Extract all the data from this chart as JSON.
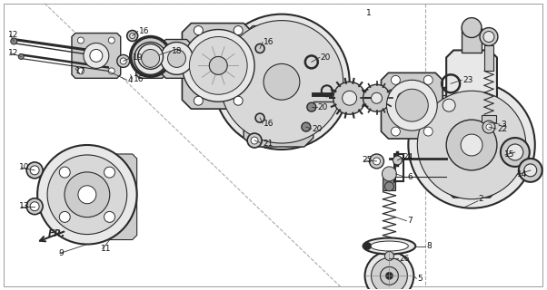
{
  "bg_color": "#ffffff",
  "dark": "#2a2a2a",
  "mid": "#888888",
  "light": "#cccccc",
  "vlight": "#e8e8e8",
  "fig_width": 6.02,
  "fig_height": 3.2,
  "dpi": 100
}
